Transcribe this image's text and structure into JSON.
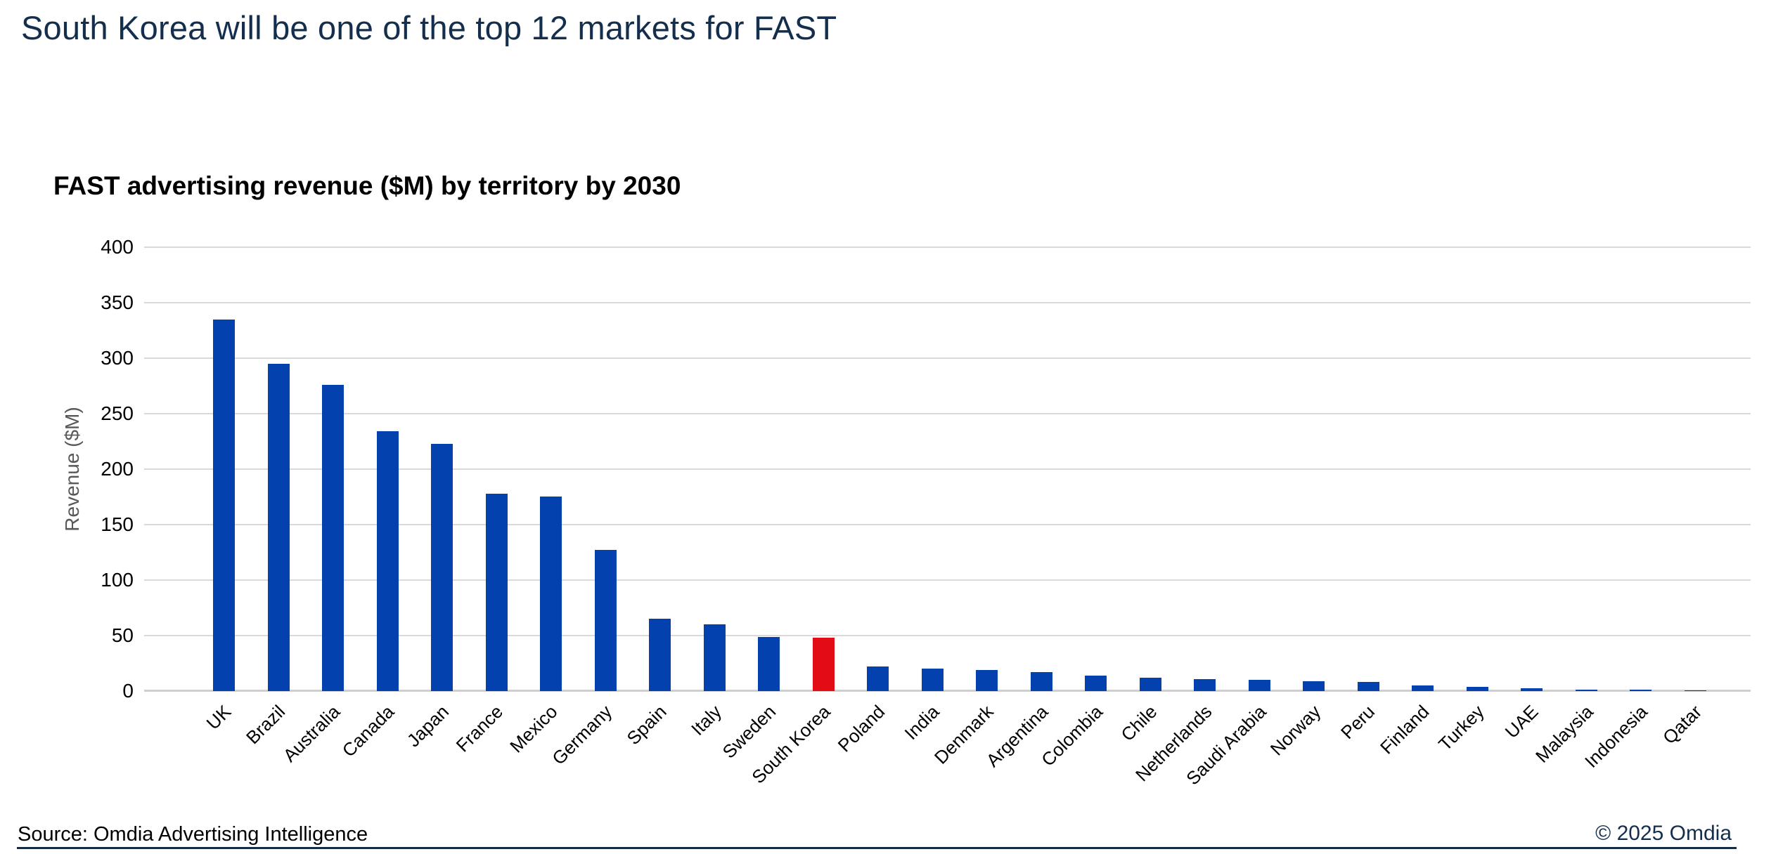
{
  "page": {
    "title": "South Korea will be one of the top 12 markets for FAST",
    "source_note": "Source: Omdia Advertising Intelligence",
    "copyright": "© 2025 Omdia"
  },
  "chart_data": {
    "type": "bar",
    "title": "FAST advertising revenue ($M) by territory by 2030",
    "xlabel": "",
    "ylabel": "Revenue ($M)",
    "ylim": [
      0,
      400
    ],
    "yticks": [
      0,
      50,
      100,
      150,
      200,
      250,
      300,
      350,
      400
    ],
    "grid": true,
    "legend_position": "none",
    "categories": [
      "UK",
      "Brazil",
      "Australia",
      "Canada",
      "Japan",
      "France",
      "Mexico",
      "Germany",
      "Spain",
      "Italy",
      "Sweden",
      "South Korea",
      "Poland",
      "India",
      "Denmark",
      "Argentina",
      "Colombia",
      "Chile",
      "Netherlands",
      "Saudi Arabia",
      "Norway",
      "Peru",
      "Finland",
      "Turkey",
      "UAE",
      "Malaysia",
      "Indonesia",
      "Qatar"
    ],
    "values": [
      335,
      295,
      276,
      234,
      223,
      178,
      175,
      127,
      65,
      60,
      49,
      48,
      22,
      20,
      19,
      17,
      14,
      12,
      11,
      10,
      9,
      8,
      5,
      4,
      2.5,
      1.5,
      1,
      0.4
    ],
    "series_color": "#0342ae",
    "highlight_category": "South Korea",
    "highlight_color": "#e30c14"
  },
  "colors": {
    "title_navy": "#142e4d",
    "gridline": "#d9d9d9",
    "axis_title_gray": "#595959",
    "footer_rule": "#162c44"
  }
}
